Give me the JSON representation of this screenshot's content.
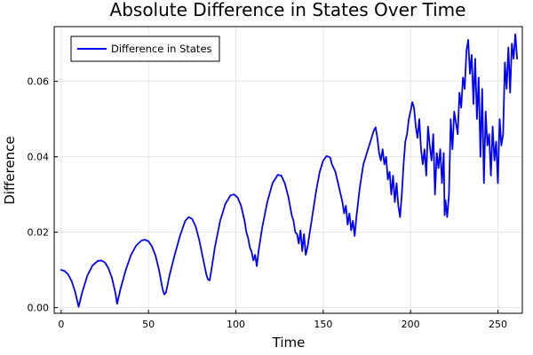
{
  "chart_data": {
    "type": "line",
    "title": "Absolute Difference in States Over Time",
    "xlabel": "Time",
    "ylabel": "Difference",
    "xlim": [
      -4,
      264
    ],
    "ylim": [
      -0.0015,
      0.0745
    ],
    "xticks": [
      0,
      50,
      100,
      150,
      200,
      250
    ],
    "xtick_labels": [
      "0",
      "50",
      "100",
      "150",
      "200",
      "250"
    ],
    "yticks": [
      0.0,
      0.02,
      0.04,
      0.06
    ],
    "ytick_labels": [
      "0.00",
      "0.02",
      "0.04",
      "0.06"
    ],
    "grid": true,
    "legend_position": "top-left",
    "series": [
      {
        "name": "Difference in States",
        "color": "#0000ff",
        "points": [
          [
            0,
            0.01
          ],
          [
            2,
            0.0097
          ],
          [
            4,
            0.0088
          ],
          [
            6,
            0.007
          ],
          [
            8,
            0.0042
          ],
          [
            10,
            0.0002
          ],
          [
            12,
            0.004
          ],
          [
            15,
            0.0085
          ],
          [
            18,
            0.0112
          ],
          [
            21,
            0.0124
          ],
          [
            23,
            0.0125
          ],
          [
            25,
            0.012
          ],
          [
            27,
            0.0105
          ],
          [
            29,
            0.008
          ],
          [
            31,
            0.004
          ],
          [
            32,
            0.001
          ],
          [
            34,
            0.005
          ],
          [
            37,
            0.01
          ],
          [
            40,
            0.014
          ],
          [
            43,
            0.0165
          ],
          [
            46,
            0.0178
          ],
          [
            48,
            0.018
          ],
          [
            50,
            0.0176
          ],
          [
            52,
            0.0162
          ],
          [
            54,
            0.0138
          ],
          [
            56,
            0.01
          ],
          [
            58,
            0.005
          ],
          [
            59,
            0.0035
          ],
          [
            60,
            0.004
          ],
          [
            62,
            0.0085
          ],
          [
            65,
            0.014
          ],
          [
            68,
            0.019
          ],
          [
            71,
            0.023
          ],
          [
            73,
            0.024
          ],
          [
            75,
            0.0235
          ],
          [
            77,
            0.0215
          ],
          [
            79,
            0.018
          ],
          [
            81,
            0.0135
          ],
          [
            83,
            0.009
          ],
          [
            84,
            0.0075
          ],
          [
            85,
            0.0072
          ],
          [
            86,
            0.01
          ],
          [
            88,
            0.016
          ],
          [
            91,
            0.023
          ],
          [
            94,
            0.0275
          ],
          [
            97,
            0.0298
          ],
          [
            99,
            0.03
          ],
          [
            101,
            0.0292
          ],
          [
            103,
            0.027
          ],
          [
            105,
            0.023
          ],
          [
            106,
            0.02
          ],
          [
            107,
            0.0185
          ],
          [
            108,
            0.016
          ],
          [
            109,
            0.0148
          ],
          [
            110,
            0.0125
          ],
          [
            111,
            0.014
          ],
          [
            112,
            0.011
          ],
          [
            113,
            0.015
          ],
          [
            115,
            0.021
          ],
          [
            118,
            0.028
          ],
          [
            121,
            0.033
          ],
          [
            124,
            0.0352
          ],
          [
            126,
            0.035
          ],
          [
            128,
            0.033
          ],
          [
            130,
            0.0295
          ],
          [
            131,
            0.027
          ],
          [
            132,
            0.0245
          ],
          [
            133,
            0.023
          ],
          [
            134,
            0.02
          ],
          [
            135,
            0.0195
          ],
          [
            136,
            0.017
          ],
          [
            137,
            0.0205
          ],
          [
            138,
            0.015
          ],
          [
            139,
            0.0195
          ],
          [
            140,
            0.014
          ],
          [
            141,
            0.016
          ],
          [
            142,
            0.019
          ],
          [
            144,
            0.025
          ],
          [
            146,
            0.031
          ],
          [
            148,
            0.036
          ],
          [
            150,
            0.039
          ],
          [
            152,
            0.0402
          ],
          [
            154,
            0.0398
          ],
          [
            155,
            0.038
          ],
          [
            157,
            0.036
          ],
          [
            159,
            0.032
          ],
          [
            160,
            0.03
          ],
          [
            161,
            0.028
          ],
          [
            162,
            0.025
          ],
          [
            163,
            0.027
          ],
          [
            164,
            0.022
          ],
          [
            165,
            0.025
          ],
          [
            166,
            0.0205
          ],
          [
            167,
            0.023
          ],
          [
            168,
            0.019
          ],
          [
            169,
            0.024
          ],
          [
            171,
            0.032
          ],
          [
            173,
            0.038
          ],
          [
            175,
            0.041
          ],
          [
            177,
            0.044
          ],
          [
            179,
            0.047
          ],
          [
            180,
            0.0478
          ],
          [
            181,
            0.045
          ],
          [
            182,
            0.041
          ],
          [
            183,
            0.039
          ],
          [
            184,
            0.042
          ],
          [
            185,
            0.038
          ],
          [
            186,
            0.04
          ],
          [
            187,
            0.034
          ],
          [
            188,
            0.036
          ],
          [
            189,
            0.03
          ],
          [
            190,
            0.035
          ],
          [
            191,
            0.028
          ],
          [
            192,
            0.033
          ],
          [
            193,
            0.027
          ],
          [
            194,
            0.024
          ],
          [
            195,
            0.03
          ],
          [
            196,
            0.038
          ],
          [
            197,
            0.044
          ],
          [
            198,
            0.046
          ],
          [
            199,
            0.05
          ],
          [
            200,
            0.052
          ],
          [
            201,
            0.0545
          ],
          [
            202,
            0.053
          ],
          [
            203,
            0.048
          ],
          [
            204,
            0.045
          ],
          [
            205,
            0.05
          ],
          [
            206,
            0.042
          ],
          [
            207,
            0.038
          ],
          [
            208,
            0.042
          ],
          [
            209,
            0.035
          ],
          [
            210,
            0.048
          ],
          [
            211,
            0.043
          ],
          [
            212,
            0.039
          ],
          [
            213,
            0.046
          ],
          [
            214,
            0.03
          ],
          [
            215,
            0.041
          ],
          [
            216,
            0.037
          ],
          [
            217,
            0.042
          ],
          [
            218,
            0.033
          ],
          [
            219,
            0.041
          ],
          [
            219.5,
            0.0245
          ],
          [
            220,
            0.0285
          ],
          [
            221,
            0.024
          ],
          [
            222,
            0.03
          ],
          [
            223,
            0.05
          ],
          [
            224,
            0.042
          ],
          [
            225,
            0.052
          ],
          [
            226,
            0.049
          ],
          [
            227,
            0.046
          ],
          [
            228,
            0.057
          ],
          [
            229,
            0.053
          ],
          [
            230,
            0.061
          ],
          [
            231,
            0.058
          ],
          [
            232,
            0.068
          ],
          [
            233,
            0.071
          ],
          [
            234,
            0.062
          ],
          [
            235,
            0.067
          ],
          [
            236,
            0.054
          ],
          [
            237,
            0.066
          ],
          [
            238,
            0.05
          ],
          [
            239,
            0.061
          ],
          [
            240,
            0.04
          ],
          [
            241,
            0.058
          ],
          [
            242,
            0.033
          ],
          [
            243,
            0.052
          ],
          [
            244,
            0.043
          ],
          [
            245,
            0.046
          ],
          [
            246,
            0.035
          ],
          [
            247,
            0.048
          ],
          [
            248,
            0.039
          ],
          [
            249,
            0.044
          ],
          [
            250,
            0.033
          ],
          [
            251,
            0.05
          ],
          [
            252,
            0.043
          ],
          [
            253,
            0.046
          ],
          [
            254,
            0.065
          ],
          [
            255,
            0.058
          ],
          [
            256,
            0.069
          ],
          [
            257,
            0.057
          ],
          [
            258,
            0.07
          ],
          [
            259,
            0.066
          ],
          [
            260,
            0.0725
          ],
          [
            261,
            0.066
          ]
        ]
      }
    ]
  }
}
